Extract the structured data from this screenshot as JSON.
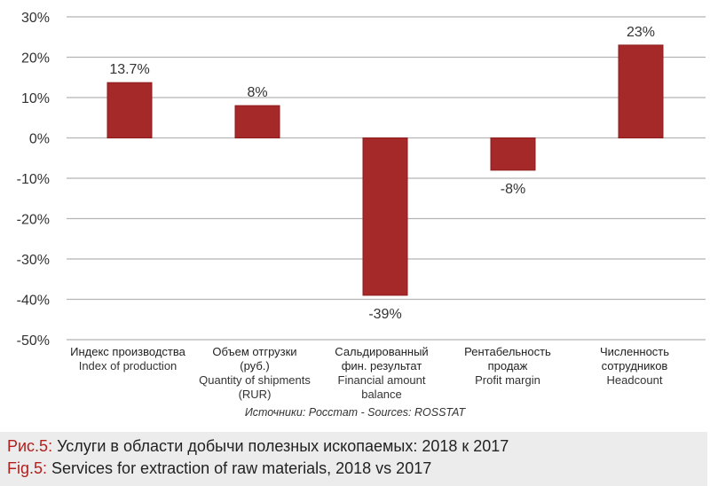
{
  "chart_data": {
    "type": "bar",
    "categories": [
      {
        "ru": "Индекс производства",
        "en": "Index of production"
      },
      {
        "ru": "Объем отгрузки (руб.)",
        "en": "Quantity of shipments (RUR)"
      },
      {
        "ru": "Сальдированный фин. результат",
        "en": "Financial amount balance"
      },
      {
        "ru": "Рентабельность продаж",
        "en": "Profit margin"
      },
      {
        "ru": "Численность сотрудников",
        "en": "Headcount"
      }
    ],
    "values": [
      13.7,
      8,
      -39,
      -8,
      23
    ],
    "data_labels": [
      "13.7%",
      "8%",
      "-39%",
      "-8%",
      "23%"
    ],
    "ylim": [
      -50,
      30
    ],
    "yticks": [
      30,
      20,
      10,
      0,
      -10,
      -20,
      -30,
      -40,
      -50
    ],
    "ytick_labels": [
      "30%",
      "20%",
      "10%",
      "0%",
      "-10%",
      "-20%",
      "-30%",
      "-40%",
      "-50%"
    ],
    "grid": true,
    "bar_color": "#a6292a",
    "source": "Источники: Росстат - Sources: ROSSTAT"
  },
  "caption": {
    "ru_label": "Рис.5:",
    "ru_text": " Услуги в области добычи полезных ископаемых: 2018 к 2017",
    "en_label": "Fig.5:",
    "en_text": " Services for extraction of raw materials, 2018 vs 2017"
  }
}
